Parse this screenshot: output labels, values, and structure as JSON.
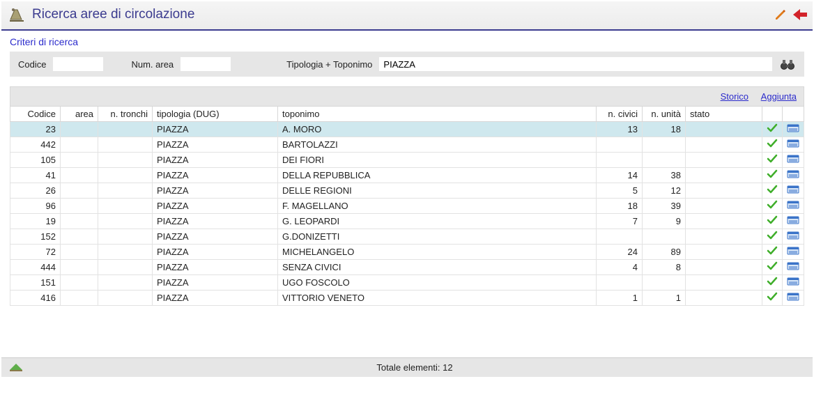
{
  "header": {
    "title": "Ricerca aree di circolazione"
  },
  "criteria": {
    "section_title": "Criteri di ricerca",
    "codice_label": "Codice",
    "codice_value": "",
    "numarea_label": "Num. area",
    "numarea_value": "",
    "tipologia_label": "Tipologia + Toponimo",
    "tipologia_value": "PIAZZA"
  },
  "links": {
    "storico": "Storico",
    "aggiunta": "Aggiunta"
  },
  "columns": {
    "codice": "Codice",
    "area": "area",
    "tronchi": "n. tronchi",
    "tipologia": "tipologia (DUG)",
    "toponimo": "toponimo",
    "civici": "n. civici",
    "unita": "n. unità",
    "stato": "stato"
  },
  "rows": [
    {
      "codice": "23",
      "area": "",
      "tronchi": "",
      "tipologia": "PIAZZA",
      "toponimo": "A. MORO",
      "civici": "13",
      "unita": "18",
      "stato": "",
      "selected": true
    },
    {
      "codice": "442",
      "area": "",
      "tronchi": "",
      "tipologia": "PIAZZA",
      "toponimo": "BARTOLAZZI",
      "civici": "",
      "unita": "",
      "stato": ""
    },
    {
      "codice": "105",
      "area": "",
      "tronchi": "",
      "tipologia": "PIAZZA",
      "toponimo": "DEI FIORI",
      "civici": "",
      "unita": "",
      "stato": ""
    },
    {
      "codice": "41",
      "area": "",
      "tronchi": "",
      "tipologia": "PIAZZA",
      "toponimo": "DELLA REPUBBLICA",
      "civici": "14",
      "unita": "38",
      "stato": ""
    },
    {
      "codice": "26",
      "area": "",
      "tronchi": "",
      "tipologia": "PIAZZA",
      "toponimo": "DELLE REGIONI",
      "civici": "5",
      "unita": "12",
      "stato": ""
    },
    {
      "codice": "96",
      "area": "",
      "tronchi": "",
      "tipologia": "PIAZZA",
      "toponimo": "F. MAGELLANO",
      "civici": "18",
      "unita": "39",
      "stato": ""
    },
    {
      "codice": "19",
      "area": "",
      "tronchi": "",
      "tipologia": "PIAZZA",
      "toponimo": "G. LEOPARDI",
      "civici": "7",
      "unita": "9",
      "stato": ""
    },
    {
      "codice": "152",
      "area": "",
      "tronchi": "",
      "tipologia": "PIAZZA",
      "toponimo": "G.DONIZETTI",
      "civici": "",
      "unita": "",
      "stato": ""
    },
    {
      "codice": "72",
      "area": "",
      "tronchi": "",
      "tipologia": "PIAZZA",
      "toponimo": "MICHELANGELO",
      "civici": "24",
      "unita": "89",
      "stato": ""
    },
    {
      "codice": "444",
      "area": "",
      "tronchi": "",
      "tipologia": "PIAZZA",
      "toponimo": "SENZA CIVICI",
      "civici": "4",
      "unita": "8",
      "stato": ""
    },
    {
      "codice": "151",
      "area": "",
      "tronchi": "",
      "tipologia": "PIAZZA",
      "toponimo": "UGO FOSCOLO",
      "civici": "",
      "unita": "",
      "stato": ""
    },
    {
      "codice": "416",
      "area": "",
      "tronchi": "",
      "tipologia": "PIAZZA",
      "toponimo": "VITTORIO VENETO",
      "civici": "1",
      "unita": "1",
      "stato": ""
    }
  ],
  "footer": {
    "total_label": "Totale elementi:",
    "total_value": "12"
  },
  "colors": {
    "accent": "#3b3b8f",
    "link": "#2b2bcc",
    "selected_row": "#cfe8ee",
    "panel_bg": "#e6e6e6",
    "check_green": "#3fae2a",
    "detail_blue": "#3a73c8",
    "pencil": "#e07b1a",
    "back_red": "#d2232a"
  }
}
